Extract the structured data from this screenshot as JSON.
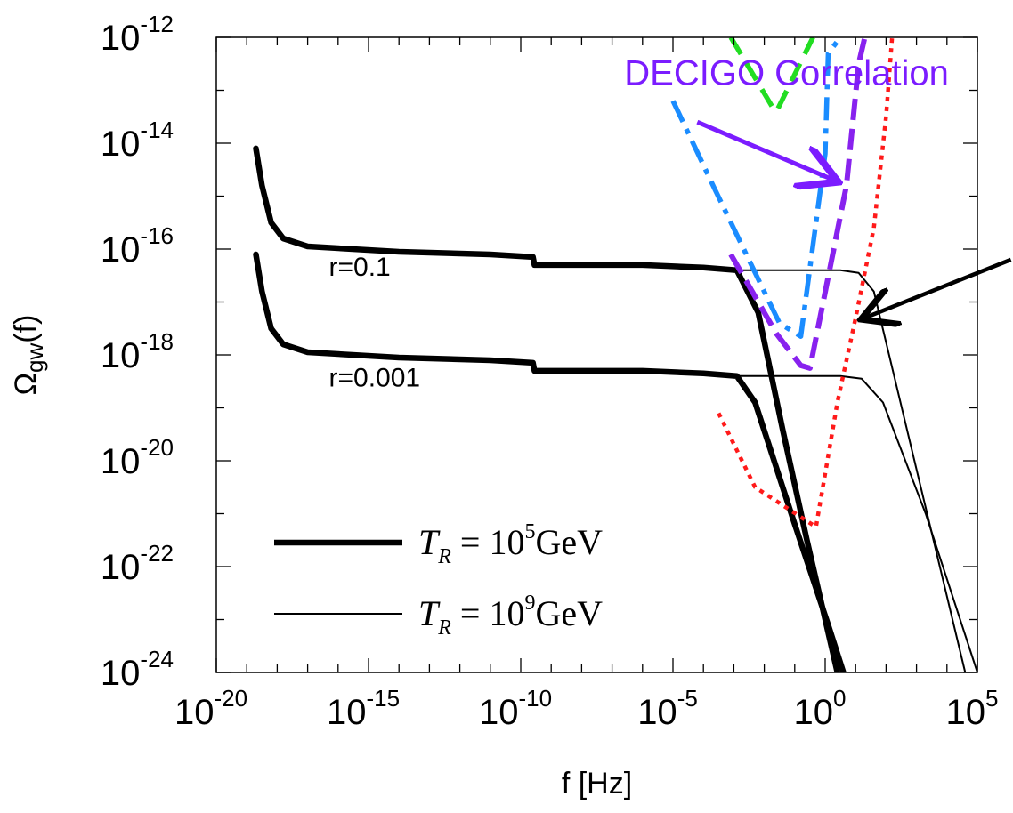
{
  "chart_data": {
    "type": "line",
    "xlabel": "f [Hz]",
    "ylabel_main": "Ω",
    "ylabel_sub": "gw",
    "ylabel_tail": "(f)",
    "x_log": true,
    "y_log": true,
    "xlim_exp": [
      -20,
      5
    ],
    "ylim_exp": [
      -24,
      -12
    ],
    "x_ticks": [
      {
        "base": "10",
        "exp": "-20",
        "value": -20
      },
      {
        "base": "10",
        "exp": "-15",
        "value": -15
      },
      {
        "base": "10",
        "exp": "-10",
        "value": -10
      },
      {
        "base": "10",
        "exp": "-5",
        "value": -5
      },
      {
        "base": "10",
        "exp": "0",
        "value": 0
      },
      {
        "base": "10",
        "exp": "5",
        "value": 5
      }
    ],
    "y_ticks": [
      {
        "base": "10",
        "exp": "-12",
        "value": -12
      },
      {
        "base": "10",
        "exp": "-14",
        "value": -14
      },
      {
        "base": "10",
        "exp": "-16",
        "value": -16
      },
      {
        "base": "10",
        "exp": "-18",
        "value": -18
      },
      {
        "base": "10",
        "exp": "-20",
        "value": -20
      },
      {
        "base": "10",
        "exp": "-22",
        "value": -22
      },
      {
        "base": "10",
        "exp": "-24",
        "value": -24
      }
    ],
    "curve_labels": [
      {
        "text": "r=0.1",
        "at": [
          -16.3,
          -16.5
        ]
      },
      {
        "text": "r=0.001",
        "at": [
          -16.3,
          -18.6
        ]
      }
    ],
    "legend": {
      "placement": "bottom-left",
      "entries": [
        {
          "T": "T",
          "sub": "R",
          "eq": " = 10",
          "sup": "5",
          "unit": "GeV",
          "style": "thick"
        },
        {
          "T": "T",
          "sub": "R",
          "eq": " = 10",
          "sup": "9",
          "unit": "GeV",
          "style": "thin"
        }
      ]
    },
    "annotation": {
      "text": "DECIGO Correlation",
      "color": "#7b1cff",
      "text_at": [
        -6.6,
        -12.9
      ],
      "arrow_from": [
        -4.2,
        -13.6
      ],
      "arrow_to": [
        0.3,
        -14.7
      ]
    },
    "extra_arrow": {
      "color": "#000000",
      "from": [
        6.1,
        -16.2
      ],
      "to": [
        1.3,
        -17.3
      ]
    },
    "series": [
      {
        "style": "thick",
        "color": "#000000",
        "points": [
          [
            -18.7,
            -14.1
          ],
          [
            -18.5,
            -14.8
          ],
          [
            -18.2,
            -15.5
          ],
          [
            -17.8,
            -15.8
          ],
          [
            -17.0,
            -15.95
          ],
          [
            -14.0,
            -16.05
          ],
          [
            -11.0,
            -16.1
          ],
          [
            -9.6,
            -16.15
          ],
          [
            -9.55,
            -16.3
          ],
          [
            -6.0,
            -16.3
          ],
          [
            -4.0,
            -16.35
          ],
          [
            -2.9,
            -16.4
          ],
          [
            -2.2,
            -17.2
          ],
          [
            -1.4,
            -19.4
          ],
          [
            -0.6,
            -21.5
          ],
          [
            0.4,
            -24.0
          ]
        ]
      },
      {
        "style": "thick",
        "color": "#000000",
        "points": [
          [
            -18.7,
            -16.1
          ],
          [
            -18.5,
            -16.8
          ],
          [
            -18.2,
            -17.5
          ],
          [
            -17.8,
            -17.8
          ],
          [
            -17.0,
            -17.95
          ],
          [
            -14.0,
            -18.05
          ],
          [
            -11.0,
            -18.1
          ],
          [
            -9.6,
            -18.15
          ],
          [
            -9.55,
            -18.3
          ],
          [
            -6.0,
            -18.3
          ],
          [
            -4.0,
            -18.35
          ],
          [
            -2.9,
            -18.4
          ],
          [
            -2.3,
            -18.9
          ],
          [
            -1.0,
            -21.2
          ],
          [
            0.1,
            -23.1
          ],
          [
            0.6,
            -24.0
          ]
        ]
      },
      {
        "style": "thin",
        "color": "#000000",
        "points": [
          [
            -2.9,
            -16.4
          ],
          [
            0.5,
            -16.4
          ],
          [
            1.1,
            -16.45
          ],
          [
            1.6,
            -16.8
          ],
          [
            4.6,
            -24.0
          ]
        ]
      },
      {
        "style": "thin",
        "color": "#000000",
        "points": [
          [
            -2.9,
            -18.4
          ],
          [
            0.5,
            -18.4
          ],
          [
            1.2,
            -18.45
          ],
          [
            1.9,
            -18.9
          ],
          [
            3.3,
            -21.0
          ],
          [
            5.0,
            -24.0
          ]
        ]
      },
      {
        "style": "dashed-green",
        "color": "#22dd22",
        "points": [
          [
            -3.1,
            -12.0
          ],
          [
            -1.7,
            -13.35
          ],
          [
            -1.6,
            -13.4
          ],
          [
            -0.4,
            -12.0
          ]
        ]
      },
      {
        "style": "dashdot-blue",
        "color": "#1a8cff",
        "points": [
          [
            -5.0,
            -13.2
          ],
          [
            -3.6,
            -14.9
          ],
          [
            -1.5,
            -17.4
          ],
          [
            -0.8,
            -17.65
          ],
          [
            0.0,
            -14.2
          ],
          [
            0.1,
            -12.3
          ],
          [
            0.5,
            -12.0
          ]
        ]
      },
      {
        "style": "dashed-violet",
        "color": "#8822ee",
        "points": [
          [
            -3.1,
            -16.1
          ],
          [
            -1.6,
            -17.6
          ],
          [
            -0.8,
            -18.2
          ],
          [
            -0.5,
            -18.25
          ],
          [
            0.7,
            -14.8
          ],
          [
            1.1,
            -12.5
          ],
          [
            1.3,
            -12.0
          ]
        ]
      },
      {
        "style": "dotted-red",
        "color": "#ff1a1a",
        "points": [
          [
            -3.5,
            -19.1
          ],
          [
            -2.3,
            -20.5
          ],
          [
            -0.3,
            -21.25
          ],
          [
            0.4,
            -18.9
          ],
          [
            1.0,
            -17.3
          ],
          [
            1.6,
            -15.6
          ],
          [
            2.0,
            -13.5
          ],
          [
            2.2,
            -12.0
          ]
        ]
      }
    ]
  }
}
